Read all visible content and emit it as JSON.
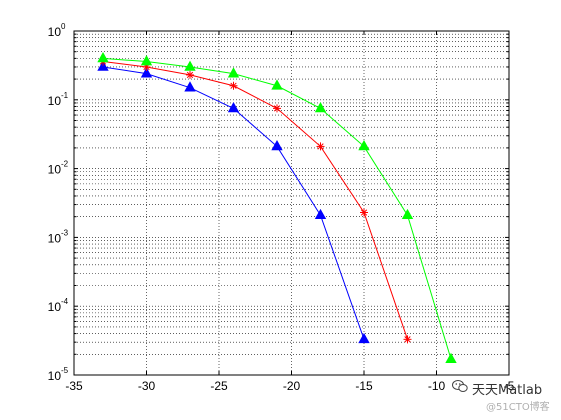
{
  "chart_data": {
    "type": "line",
    "title": "",
    "xlabel": "",
    "ylabel": "",
    "xlim": [
      -35,
      -5
    ],
    "ylim": [
      1e-05,
      1
    ],
    "yscale": "log",
    "grid": true,
    "grid_style": "dotted",
    "x_ticks": [
      -35,
      -30,
      -25,
      -20,
      -15,
      -10,
      -5
    ],
    "x_tick_labels": [
      "-35",
      "-30",
      "-25",
      "-20",
      "-15",
      "-10",
      "-5"
    ],
    "y_ticks": [
      {
        "base": "10",
        "exp": "0"
      },
      {
        "base": "10",
        "exp": "-1"
      },
      {
        "base": "10",
        "exp": "-2"
      },
      {
        "base": "10",
        "exp": "-3"
      },
      {
        "base": "10",
        "exp": "-4"
      },
      {
        "base": "10",
        "exp": "-5"
      }
    ],
    "series": [
      {
        "color": "#0000ff",
        "marker": "triangle",
        "x": [
          -33,
          -30,
          -27,
          -24,
          -21,
          -18,
          -15
        ],
        "y": [
          0.3,
          0.24,
          0.15,
          0.075,
          0.021,
          0.0021,
          3.3e-05
        ]
      },
      {
        "color": "#ff0000",
        "marker": "star",
        "x": [
          -33,
          -30,
          -27,
          -24,
          -21,
          -18,
          -15,
          -12
        ],
        "y": [
          0.36,
          0.3,
          0.23,
          0.16,
          0.075,
          0.021,
          0.0023,
          3.3e-05
        ]
      },
      {
        "color": "#00ff00",
        "marker": "triangle",
        "x": [
          -33,
          -30,
          -27,
          -24,
          -21,
          -18,
          -15,
          -12,
          -9
        ],
        "y": [
          0.4,
          0.36,
          0.3,
          0.24,
          0.16,
          0.075,
          0.021,
          0.0021,
          1.7e-05
        ]
      }
    ]
  },
  "watermark": {
    "text": "天天Matlab",
    "subtext": "@51CTO博客",
    "icon": "wechat-icon"
  }
}
